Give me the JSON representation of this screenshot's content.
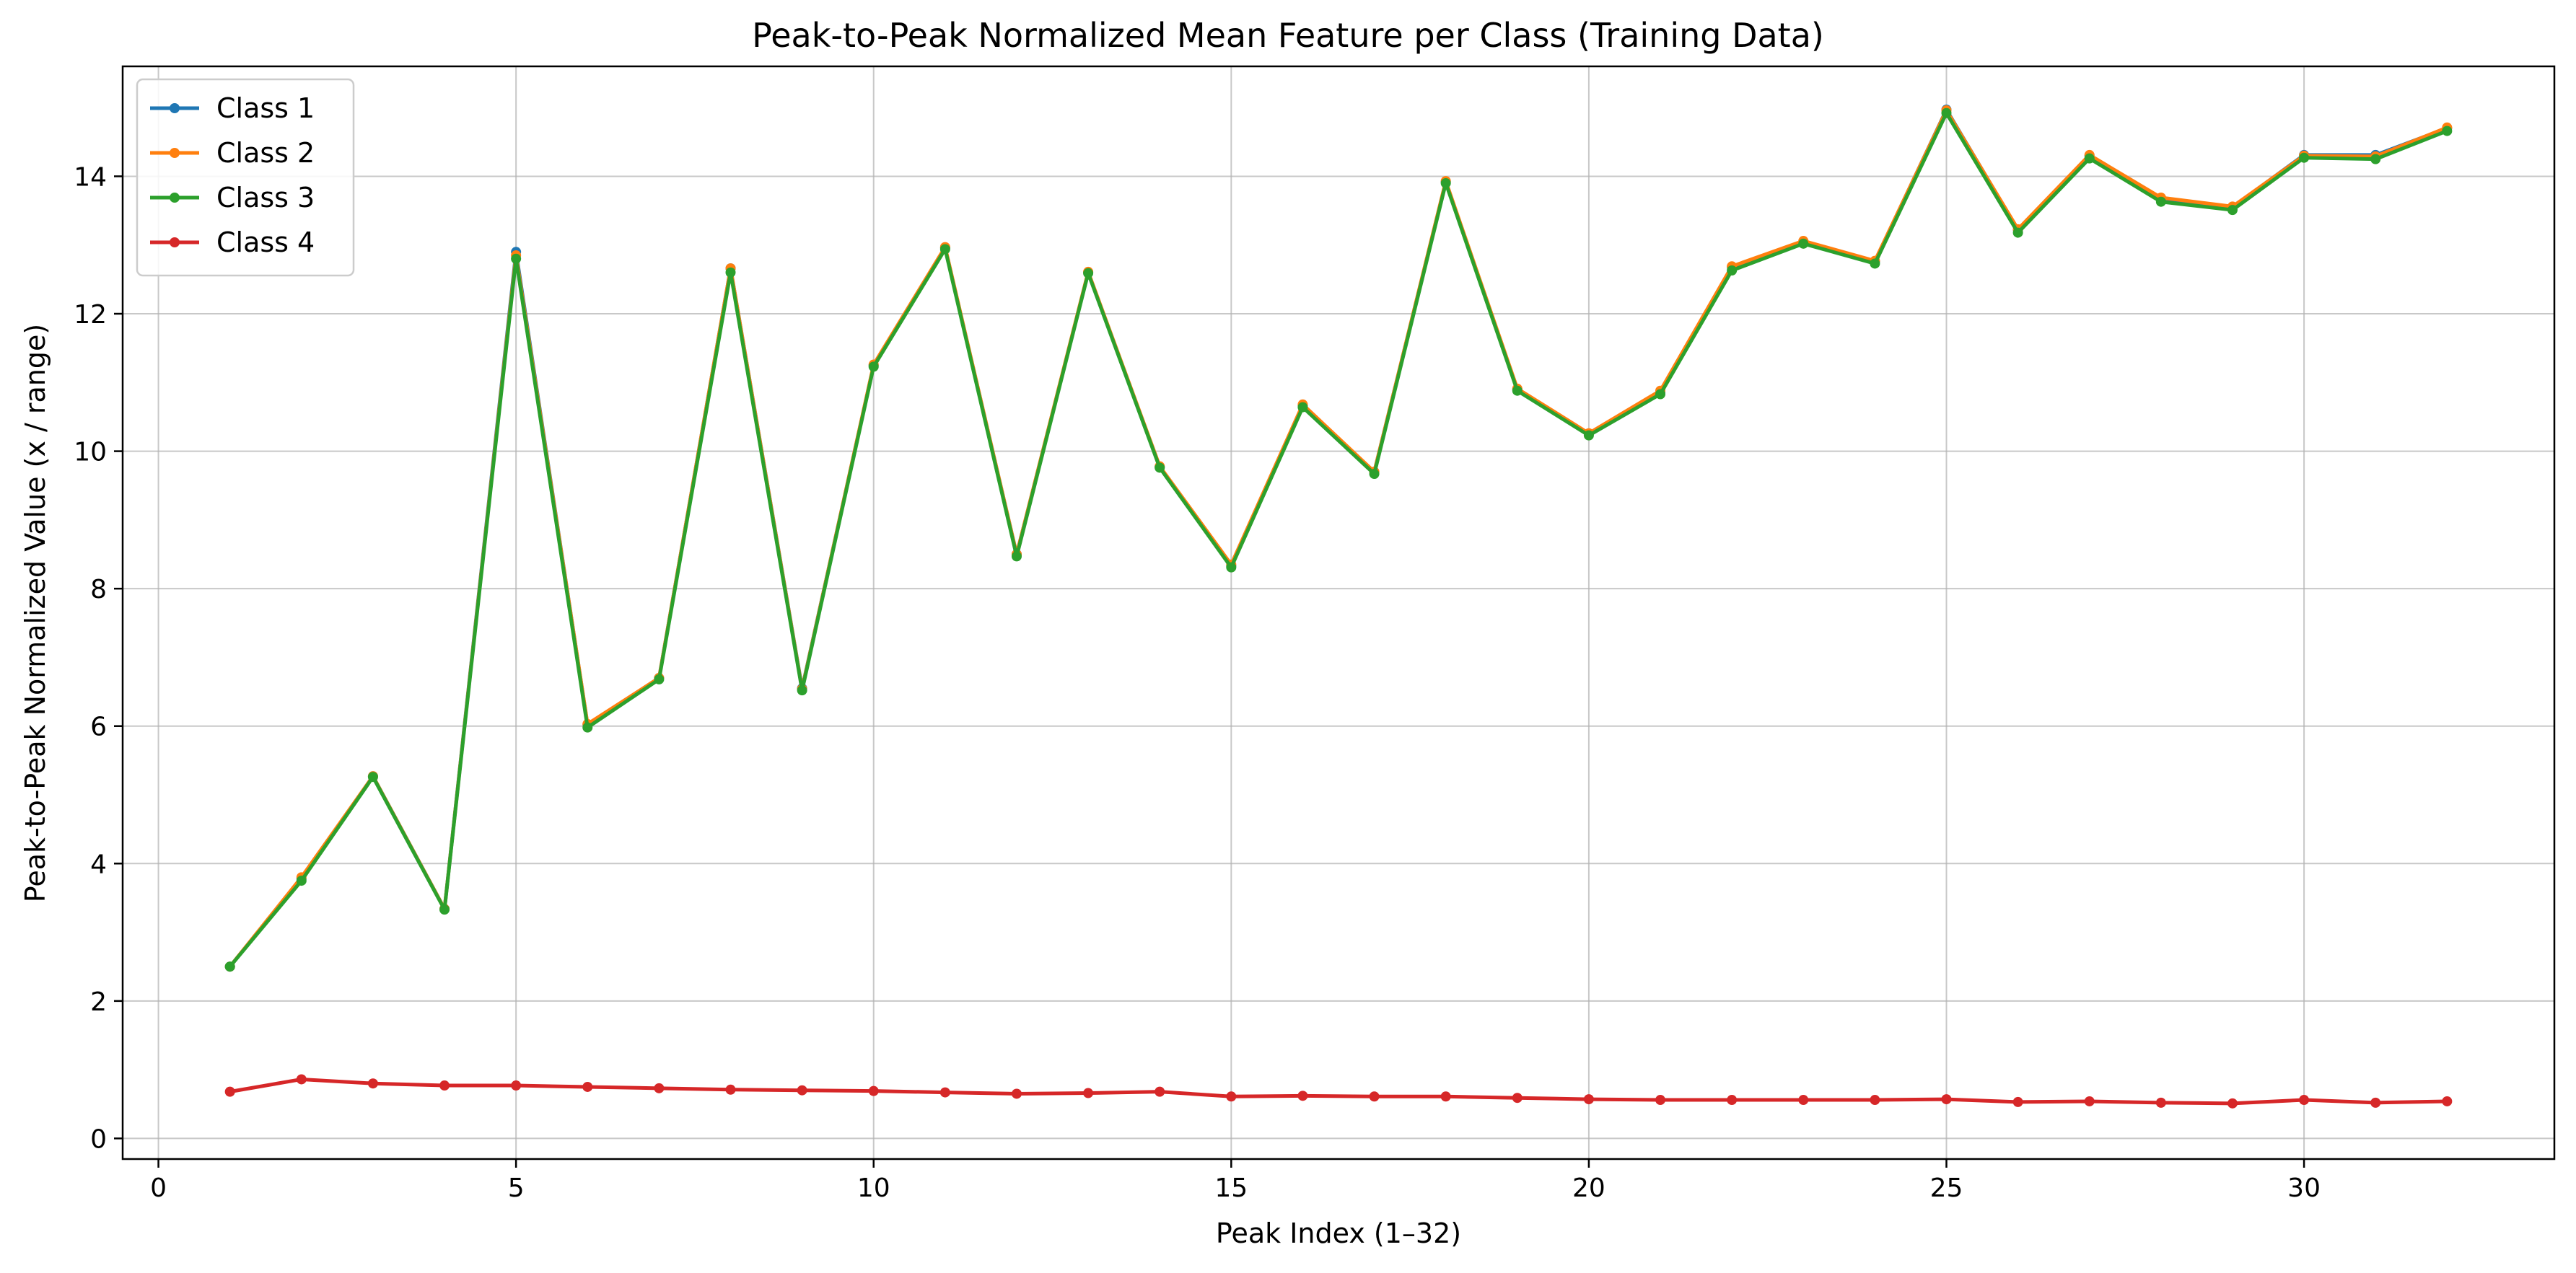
{
  "chart_data": {
    "type": "line",
    "title": "Peak-to-Peak Normalized Mean Feature per Class (Training Data)",
    "xlabel": "Peak Index (1–32)",
    "ylabel": "Peak-to-Peak Normalized Value (x / range)",
    "xlim": [
      -0.5,
      33.5
    ],
    "ylim": [
      -0.3,
      15.6
    ],
    "xticks": [
      0,
      5,
      10,
      15,
      20,
      25,
      30
    ],
    "yticks": [
      0,
      2,
      4,
      6,
      8,
      10,
      12,
      14
    ],
    "grid": true,
    "legend_position": "top-left",
    "x": [
      1,
      2,
      3,
      4,
      5,
      6,
      7,
      8,
      9,
      10,
      11,
      12,
      13,
      14,
      15,
      16,
      17,
      18,
      19,
      20,
      21,
      22,
      23,
      24,
      25,
      26,
      27,
      28,
      29,
      30,
      31,
      32
    ],
    "series": [
      {
        "name": "Class 1",
        "color": "#1f77b4",
        "values": [
          2.5,
          3.78,
          5.27,
          3.34,
          12.9,
          6.02,
          6.7,
          12.66,
          6.55,
          11.25,
          12.96,
          8.5,
          12.6,
          9.77,
          8.33,
          10.66,
          9.7,
          13.92,
          10.9,
          10.25,
          10.86,
          12.68,
          13.05,
          12.76,
          14.97,
          13.22,
          14.3,
          13.68,
          13.55,
          14.31,
          14.31,
          14.7
        ]
      },
      {
        "name": "Class 2",
        "color": "#ff7f0e",
        "values": [
          2.5,
          3.8,
          5.27,
          3.34,
          12.85,
          6.03,
          6.7,
          12.66,
          6.54,
          11.26,
          12.97,
          8.5,
          12.61,
          9.78,
          8.35,
          10.68,
          9.7,
          13.93,
          10.91,
          10.26,
          10.88,
          12.69,
          13.06,
          12.77,
          14.96,
          13.23,
          14.31,
          13.69,
          13.56,
          14.3,
          14.29,
          14.71
        ]
      },
      {
        "name": "Class 3",
        "color": "#2ca02c",
        "values": [
          2.5,
          3.75,
          5.26,
          3.33,
          12.8,
          5.98,
          6.68,
          12.6,
          6.52,
          11.23,
          12.94,
          8.47,
          12.59,
          9.76,
          8.31,
          10.64,
          9.67,
          13.9,
          10.88,
          10.23,
          10.83,
          12.63,
          13.02,
          12.73,
          14.92,
          13.18,
          14.26,
          13.63,
          13.51,
          14.27,
          14.25,
          14.66
        ]
      },
      {
        "name": "Class 4",
        "color": "#d62728",
        "values": [
          0.68,
          0.86,
          0.8,
          0.77,
          0.77,
          0.75,
          0.73,
          0.71,
          0.7,
          0.69,
          0.67,
          0.65,
          0.66,
          0.68,
          0.61,
          0.62,
          0.61,
          0.61,
          0.59,
          0.57,
          0.56,
          0.56,
          0.56,
          0.56,
          0.57,
          0.53,
          0.54,
          0.52,
          0.51,
          0.56,
          0.52,
          0.54
        ]
      }
    ]
  }
}
